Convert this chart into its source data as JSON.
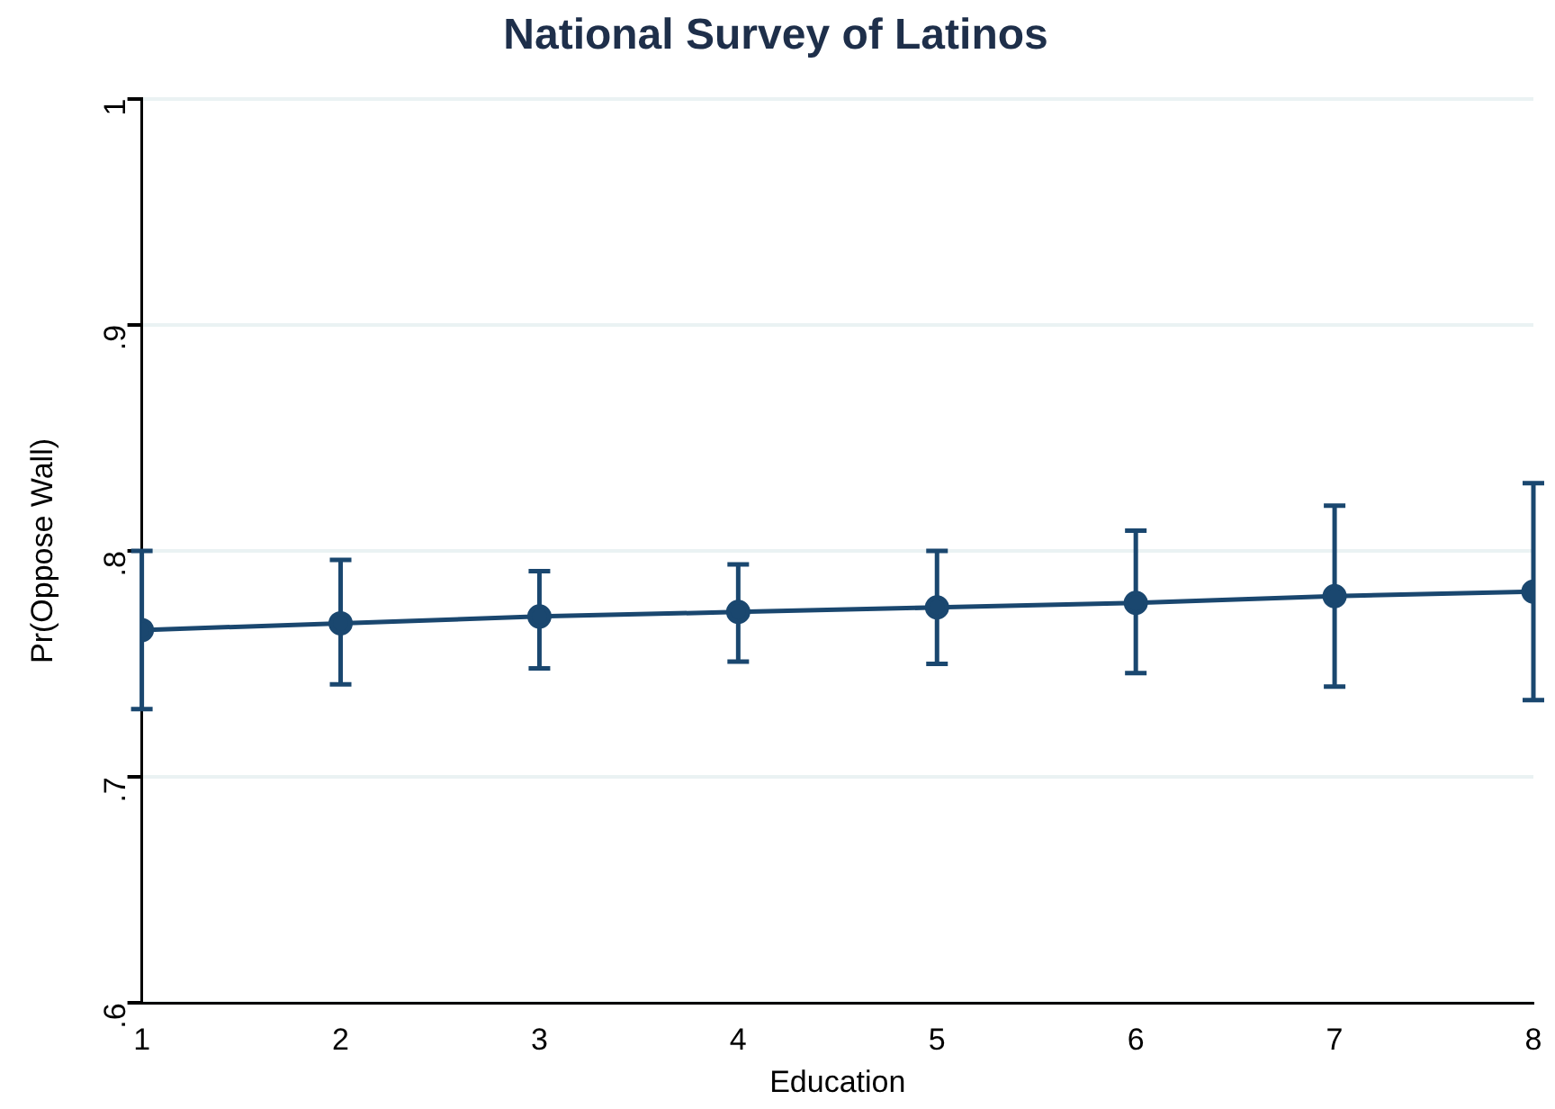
{
  "chart_data": {
    "type": "line",
    "title": "National Survey of Latinos",
    "xlabel": "Education",
    "ylabel": "Pr(Oppose Wall)",
    "x": [
      1,
      2,
      3,
      4,
      5,
      6,
      7,
      8
    ],
    "series": [
      {
        "color": "#1a476f",
        "values": [
          0.765,
          0.768,
          0.771,
          0.773,
          0.775,
          0.777,
          0.78,
          0.782
        ],
        "errors": [
          [
            0.73,
            0.8
          ],
          [
            0.741,
            0.796
          ],
          [
            0.748,
            0.791
          ],
          [
            0.751,
            0.794
          ],
          [
            0.75,
            0.8
          ],
          [
            0.746,
            0.809
          ],
          [
            0.74,
            0.82
          ],
          [
            0.734,
            0.83
          ]
        ]
      }
    ],
    "xlim": [
      1,
      8
    ],
    "xticks": [
      1,
      2,
      3,
      4,
      5,
      6,
      7,
      8
    ],
    "ylim": [
      0.6,
      1
    ],
    "yticks": [
      {
        "value": 0.6,
        "label": ".6"
      },
      {
        "value": 0.7,
        "label": ".7"
      },
      {
        "value": 0.8,
        "label": ".8"
      },
      {
        "value": 0.9,
        "label": ".9"
      },
      {
        "value": 1,
        "label": "1"
      }
    ],
    "grid": "y",
    "legend": false,
    "marker": "circle",
    "line_style": "solid"
  }
}
